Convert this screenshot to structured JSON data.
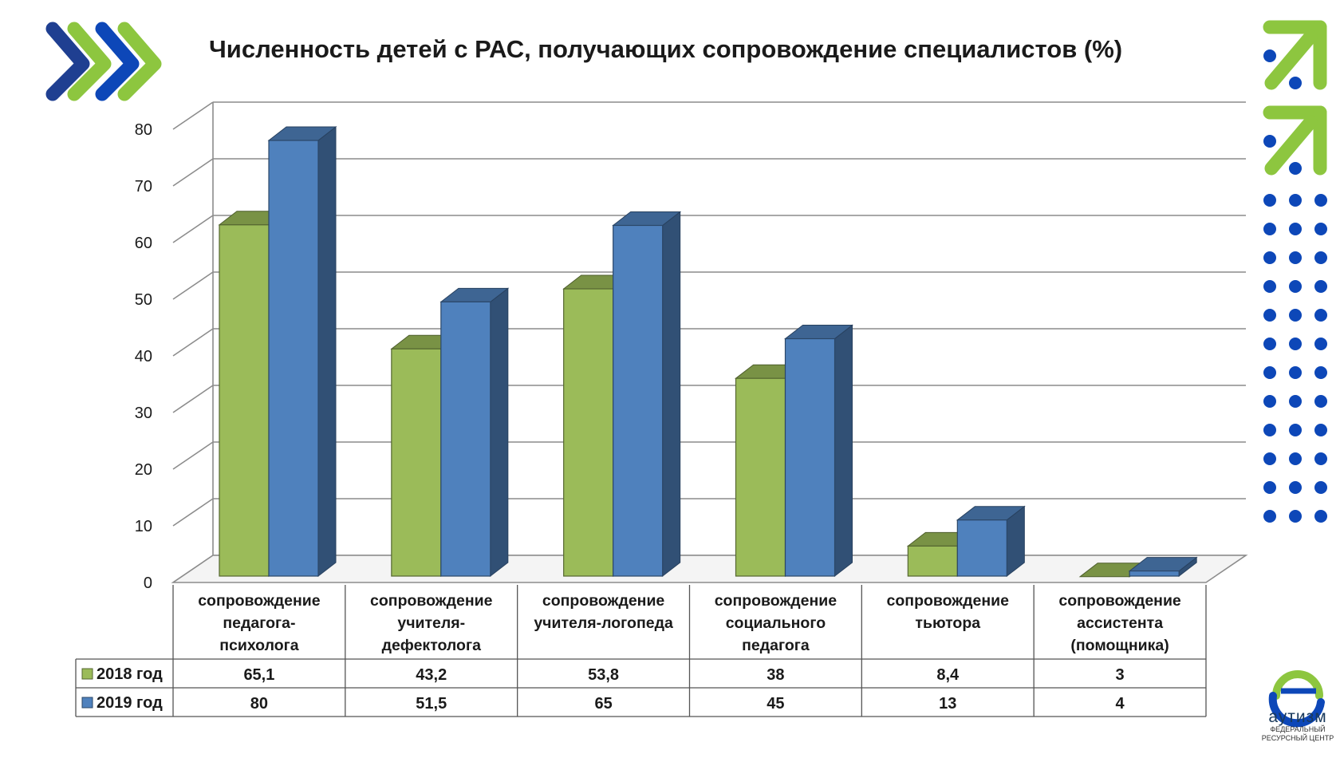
{
  "chart_data": {
    "type": "bar",
    "title": "Численность детей с РАС, получающих сопровождение специалистов (%)",
    "categories": [
      [
        "сопровождение",
        "педагога-",
        "психолога"
      ],
      [
        "сопровождение",
        "учителя-",
        "дефектолога"
      ],
      [
        "сопровождение",
        "учителя-логопеда"
      ],
      [
        "сопровождение",
        "социального",
        "педагога"
      ],
      [
        "сопровождение",
        "тьютора"
      ],
      [
        "сопровождение",
        "ассистента",
        "(помощника)"
      ]
    ],
    "series": [
      {
        "name": "2018 год",
        "color": "#9bbb59",
        "values": [
          65.1,
          43.2,
          53.8,
          38,
          8.4,
          3
        ],
        "labels": [
          "65,1",
          "43,2",
          "53,8",
          "38",
          "8,4",
          "3"
        ]
      },
      {
        "name": "2019 год",
        "color": "#4f81bd",
        "values": [
          80,
          51.5,
          65,
          45,
          13,
          4
        ],
        "labels": [
          "80",
          "51,5",
          "65",
          "45",
          "13",
          "4"
        ]
      }
    ],
    "ylim": [
      0,
      80
    ],
    "yticks": [
      "0",
      "10",
      "20",
      "30",
      "40",
      "50",
      "60",
      "70",
      "80"
    ],
    "grid": true,
    "legend": "data-table"
  },
  "logo": {
    "name": "аутизм",
    "subtitle_line1": "ФЕДЕРАЛЬНЫЙ",
    "subtitle_line2": "РЕСУРСНЫЙ ЦЕНТР"
  },
  "decor": {
    "green": "#8dc63f",
    "blue": "#0d47b8",
    "dark_blue": "#1f3f91"
  }
}
